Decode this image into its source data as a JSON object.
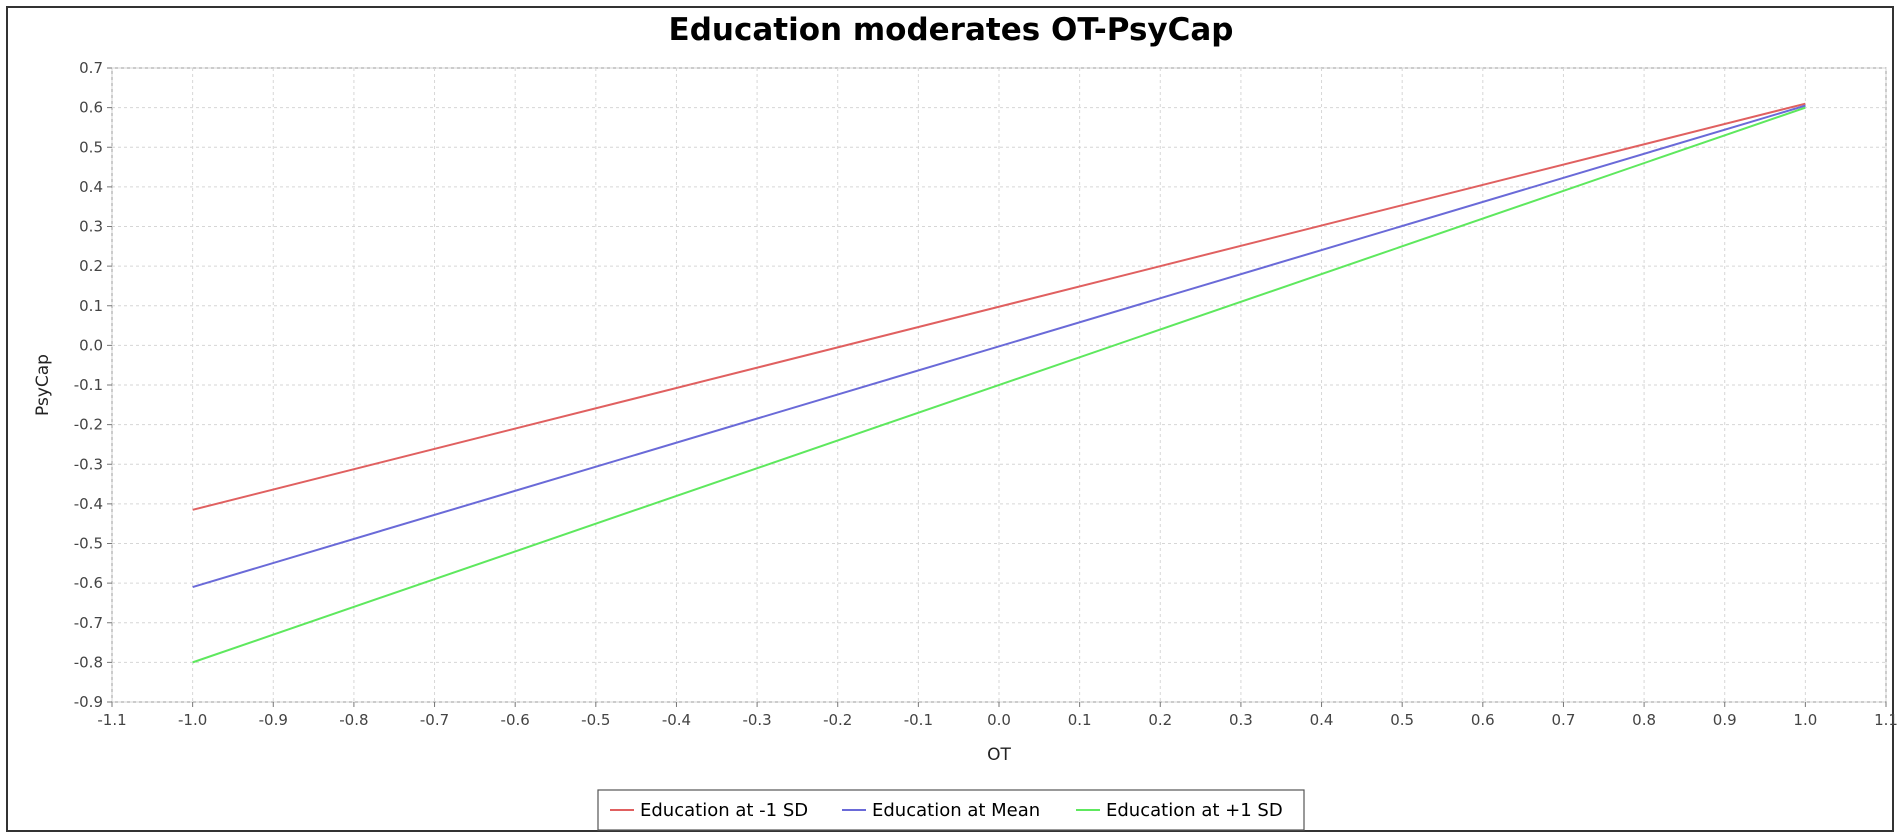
{
  "chart_data": {
    "type": "line",
    "title": "Education moderates OT-PsyCap",
    "xlabel": "OT",
    "ylabel": "PsyCap",
    "xlim": [
      -1.1,
      1.1
    ],
    "ylim": [
      -0.9,
      0.7
    ],
    "x_ticks": [
      "-1.1",
      "-1.0",
      "-0.9",
      "-0.8",
      "-0.7",
      "-0.6",
      "-0.5",
      "-0.4",
      "-0.3",
      "-0.2",
      "-0.1",
      "0.0",
      "0.1",
      "0.2",
      "0.3",
      "0.4",
      "0.5",
      "0.6",
      "0.7",
      "0.8",
      "0.9",
      "1.0",
      "1.1"
    ],
    "y_ticks": [
      "0.7",
      "0.6",
      "0.5",
      "0.4",
      "0.3",
      "0.2",
      "0.1",
      "0.0",
      "-0.1",
      "-0.2",
      "-0.3",
      "-0.4",
      "-0.5",
      "-0.6",
      "-0.7",
      "-0.8",
      "-0.9"
    ],
    "grid": true,
    "legend_position": "bottom",
    "series": [
      {
        "name": "Education at -1 SD",
        "color": "#e06060",
        "x": [
          -1.0,
          1.0
        ],
        "y": [
          -0.415,
          0.61
        ]
      },
      {
        "name": "Education at Mean",
        "color": "#6a6ad8",
        "x": [
          -1.0,
          1.0
        ],
        "y": [
          -0.61,
          0.605
        ]
      },
      {
        "name": "Education at +1 SD",
        "color": "#5ee85e",
        "x": [
          -1.0,
          1.0
        ],
        "y": [
          -0.8,
          0.6
        ]
      }
    ]
  }
}
